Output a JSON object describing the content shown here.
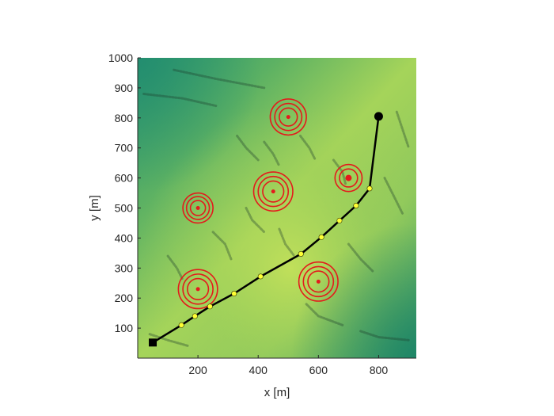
{
  "chart_data": {
    "type": "scatter",
    "title": "",
    "xlabel": "x [m]",
    "ylabel": "y [m]",
    "xlim": [
      0,
      925
    ],
    "ylim": [
      0,
      1000
    ],
    "x_ticks": [
      200,
      400,
      600,
      800
    ],
    "y_ticks": [
      100,
      200,
      300,
      400,
      500,
      600,
      700,
      800,
      900,
      1000
    ],
    "grid": false,
    "legend": "none",
    "background": "terrain colormap (green to yellow-green)",
    "start": {
      "x": 50,
      "y": 52,
      "marker": "square",
      "color": "#000000"
    },
    "goal": {
      "x": 800,
      "y": 805,
      "marker": "circle",
      "color": "#000000"
    },
    "path": {
      "color": "#000000",
      "waypoint_color": "#ffff33",
      "points": [
        {
          "x": 50,
          "y": 52
        },
        {
          "x": 145,
          "y": 110
        },
        {
          "x": 190,
          "y": 140
        },
        {
          "x": 240,
          "y": 172
        },
        {
          "x": 320,
          "y": 215
        },
        {
          "x": 408,
          "y": 272
        },
        {
          "x": 542,
          "y": 347
        },
        {
          "x": 610,
          "y": 403
        },
        {
          "x": 670,
          "y": 458
        },
        {
          "x": 725,
          "y": 508
        },
        {
          "x": 770,
          "y": 565
        },
        {
          "x": 800,
          "y": 805
        }
      ]
    },
    "threats": [
      {
        "x": 500,
        "y": 803,
        "radii": [
          30,
          45,
          60
        ],
        "center_size": "small"
      },
      {
        "x": 700,
        "y": 600,
        "radii": [
          30,
          45
        ],
        "center_size": "large"
      },
      {
        "x": 450,
        "y": 555,
        "radii": [
          35,
          50,
          65
        ],
        "center_size": "small"
      },
      {
        "x": 200,
        "y": 500,
        "radii": [
          25,
          38,
          50
        ],
        "center_size": "small"
      },
      {
        "x": 200,
        "y": 230,
        "radii": [
          35,
          50,
          65
        ],
        "center_size": "small"
      },
      {
        "x": 600,
        "y": 255,
        "radii": [
          35,
          50,
          65
        ],
        "center_size": "small"
      }
    ],
    "threat_color": "#e41a1c"
  }
}
